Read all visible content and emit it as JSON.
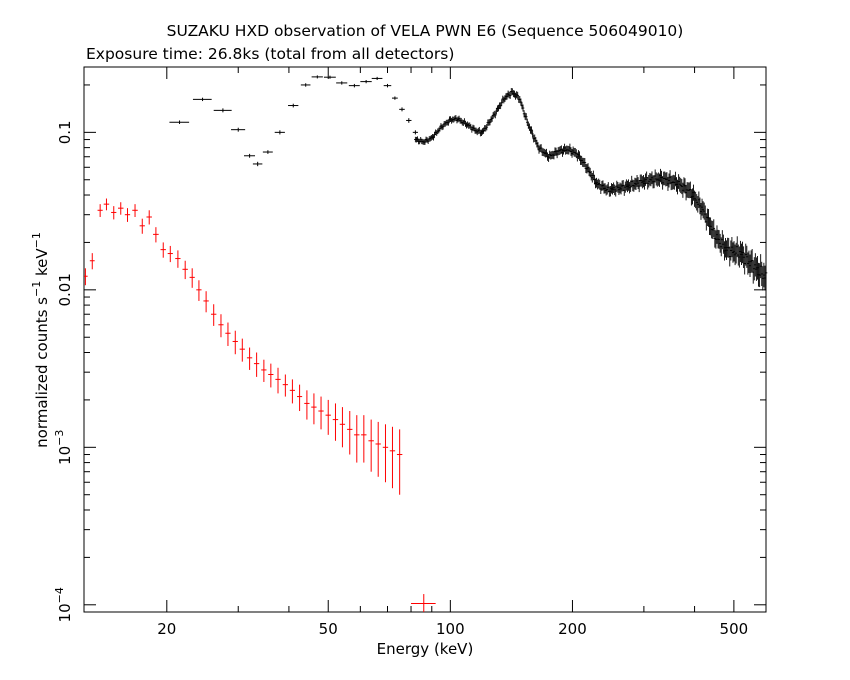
{
  "chart_data": {
    "type": "scatter",
    "title": "SUZAKU HXD observation of VELA PWN E6 (Sequence 506049010)",
    "subtitle": "Exposure time: 26.8ks (total from all detectors)",
    "xlabel": "Energy (keV)",
    "ylabel": "normalized counts s^-1 keV^-1",
    "x_scale": "log",
    "y_scale": "log",
    "xlim": [
      12.5,
      600
    ],
    "ylim": [
      9e-05,
      0.26
    ],
    "x_ticks": [
      20,
      50,
      100,
      200,
      500
    ],
    "x_tick_labels": [
      "20",
      "50",
      "100",
      "200",
      "500"
    ],
    "y_ticks": [
      0.0001,
      0.001,
      0.01,
      0.1
    ],
    "y_tick_labels": [
      "10^-4",
      "10^-3",
      "0.01",
      "0.1"
    ],
    "grid": false,
    "legend": "none",
    "series": [
      {
        "color": "#000000",
        "points": [
          [
            21.5,
            0.116,
            1.2,
            0.003
          ],
          [
            24.5,
            0.162,
            1.3,
            0.004
          ],
          [
            27.5,
            0.138,
            1.4,
            0.004
          ],
          [
            30.0,
            0.104,
            1.2,
            0.003
          ],
          [
            32.0,
            0.071,
            1.0,
            0.002
          ],
          [
            33.5,
            0.063,
            0.9,
            0.002
          ],
          [
            35.5,
            0.075,
            1.0,
            0.002
          ],
          [
            38.0,
            0.1,
            1.1,
            0.003
          ],
          [
            41.0,
            0.148,
            1.2,
            0.004
          ],
          [
            44.0,
            0.2,
            1.2,
            0.005
          ],
          [
            47.0,
            0.225,
            1.5,
            0.005
          ],
          [
            50.5,
            0.224,
            1.7,
            0.005
          ],
          [
            54.0,
            0.206,
            1.7,
            0.005
          ],
          [
            58.0,
            0.198,
            1.8,
            0.005
          ],
          [
            62.0,
            0.21,
            2.0,
            0.005
          ],
          [
            66.0,
            0.22,
            2.0,
            0.005
          ],
          [
            70.0,
            0.198,
            1.5,
            0.005
          ],
          [
            73.0,
            0.165,
            1.2,
            0.004
          ],
          [
            76.0,
            0.14,
            1.2,
            0.004
          ],
          [
            79.0,
            0.119,
            1.2,
            0.004
          ],
          [
            82.0,
            0.1,
            1.2,
            0.003
          ]
        ]
      },
      {
        "color": "#ff0000",
        "points": [
          [
            12.6,
            0.0122,
            0.16,
            0.0015
          ],
          [
            13.1,
            0.0153,
            0.18,
            0.0018
          ],
          [
            13.7,
            0.032,
            0.2,
            0.003
          ],
          [
            14.2,
            0.035,
            0.22,
            0.003
          ],
          [
            14.8,
            0.031,
            0.22,
            0.003
          ],
          [
            15.4,
            0.033,
            0.24,
            0.003
          ],
          [
            16.0,
            0.03,
            0.24,
            0.003
          ],
          [
            16.7,
            0.032,
            0.26,
            0.003
          ],
          [
            17.4,
            0.0255,
            0.26,
            0.0028
          ],
          [
            18.1,
            0.029,
            0.28,
            0.003
          ],
          [
            18.8,
            0.0225,
            0.3,
            0.0025
          ],
          [
            19.6,
            0.018,
            0.3,
            0.002
          ],
          [
            20.4,
            0.017,
            0.3,
            0.002
          ],
          [
            21.3,
            0.0158,
            0.32,
            0.002
          ],
          [
            22.2,
            0.0135,
            0.34,
            0.0018
          ],
          [
            23.1,
            0.012,
            0.34,
            0.0017
          ],
          [
            24.0,
            0.01,
            0.36,
            0.0015
          ],
          [
            25.0,
            0.0085,
            0.38,
            0.0013
          ],
          [
            26.1,
            0.007,
            0.4,
            0.0011
          ],
          [
            27.2,
            0.006,
            0.4,
            0.001
          ],
          [
            28.3,
            0.0053,
            0.42,
            0.0009
          ],
          [
            29.5,
            0.0047,
            0.44,
            0.0008
          ],
          [
            30.7,
            0.0042,
            0.46,
            0.0007
          ],
          [
            32.0,
            0.0037,
            0.48,
            0.0006
          ],
          [
            33.3,
            0.0034,
            0.5,
            0.0006
          ],
          [
            34.7,
            0.0031,
            0.52,
            0.0005
          ],
          [
            36.1,
            0.0029,
            0.54,
            0.0005
          ],
          [
            37.6,
            0.0027,
            0.56,
            0.0005
          ],
          [
            39.2,
            0.0025,
            0.58,
            0.0004
          ],
          [
            40.8,
            0.0023,
            0.6,
            0.0004
          ],
          [
            42.5,
            0.0021,
            0.62,
            0.0004
          ],
          [
            44.3,
            0.0019,
            0.66,
            0.0004
          ],
          [
            46.1,
            0.0018,
            0.7,
            0.0004
          ],
          [
            48.0,
            0.0017,
            0.72,
            0.0004
          ],
          [
            50.0,
            0.0016,
            0.76,
            0.0004
          ],
          [
            52.1,
            0.0015,
            0.8,
            0.0004
          ],
          [
            54.2,
            0.0014,
            0.82,
            0.0004
          ],
          [
            56.5,
            0.0013,
            0.86,
            0.0004
          ],
          [
            58.8,
            0.0012,
            0.9,
            0.0004
          ],
          [
            61.2,
            0.0012,
            0.94,
            0.0004
          ],
          [
            63.8,
            0.0011,
            0.98,
            0.0004
          ],
          [
            66.4,
            0.00105,
            1.0,
            0.0004
          ],
          [
            69.2,
            0.001,
            1.05,
            0.0004
          ],
          [
            72.0,
            0.00095,
            1.1,
            0.0004
          ],
          [
            75.0,
            0.0009,
            1.15,
            0.0004
          ],
          [
            86.0,
            0.000102,
            6.0,
            1.5e-05
          ]
        ]
      }
    ],
    "series_dense": {
      "color": "#000000",
      "anchors": [
        [
          82,
          0.09
        ],
        [
          86,
          0.087
        ],
        [
          90,
          0.092
        ],
        [
          95,
          0.108
        ],
        [
          100,
          0.12
        ],
        [
          104,
          0.122
        ],
        [
          110,
          0.112
        ],
        [
          116,
          0.102
        ],
        [
          120,
          0.1
        ],
        [
          128,
          0.128
        ],
        [
          136,
          0.165
        ],
        [
          142,
          0.18
        ],
        [
          148,
          0.165
        ],
        [
          155,
          0.115
        ],
        [
          165,
          0.08
        ],
        [
          175,
          0.07
        ],
        [
          185,
          0.076
        ],
        [
          195,
          0.078
        ],
        [
          205,
          0.073
        ],
        [
          215,
          0.062
        ],
        [
          230,
          0.047
        ],
        [
          245,
          0.043
        ],
        [
          270,
          0.045
        ],
        [
          300,
          0.049
        ],
        [
          330,
          0.051
        ],
        [
          360,
          0.048
        ],
        [
          390,
          0.042
        ],
        [
          420,
          0.032
        ],
        [
          450,
          0.022
        ],
        [
          480,
          0.018
        ],
        [
          520,
          0.017
        ],
        [
          560,
          0.014
        ],
        [
          600,
          0.012
        ]
      ]
    }
  }
}
